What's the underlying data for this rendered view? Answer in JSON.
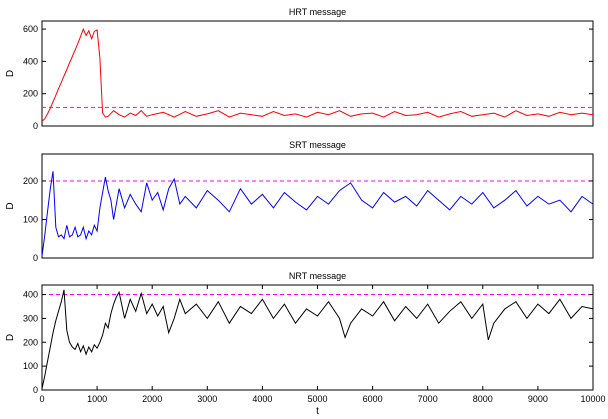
{
  "chart_data": [
    {
      "type": "line",
      "title": "HRT message",
      "ylabel": "D",
      "xlabel": "",
      "xlim": [
        0,
        10000
      ],
      "ylim": [
        0,
        650
      ],
      "yticks": [
        0,
        200,
        400,
        600
      ],
      "xticks": [],
      "threshold": 115,
      "threshold_color": "#ff00ff",
      "series_color": "#ff0000",
      "grid": false,
      "x": [
        0,
        50,
        100,
        150,
        200,
        250,
        300,
        350,
        400,
        450,
        500,
        550,
        600,
        650,
        700,
        750,
        800,
        850,
        900,
        950,
        1000,
        1050,
        1100,
        1150,
        1200,
        1300,
        1400,
        1500,
        1600,
        1700,
        1800,
        1900,
        2000,
        2200,
        2400,
        2600,
        2800,
        3000,
        3200,
        3400,
        3600,
        3800,
        4000,
        4200,
        4400,
        4600,
        4800,
        5000,
        5200,
        5400,
        5600,
        5800,
        6000,
        6200,
        6400,
        6600,
        6800,
        7000,
        7200,
        7400,
        7600,
        7800,
        8000,
        8200,
        8400,
        8600,
        8800,
        9000,
        9200,
        9400,
        9600,
        9800,
        10000
      ],
      "y": [
        30,
        45,
        75,
        110,
        150,
        190,
        230,
        270,
        310,
        350,
        390,
        430,
        470,
        510,
        555,
        600,
        560,
        590,
        540,
        585,
        595,
        420,
        80,
        55,
        60,
        95,
        70,
        55,
        80,
        65,
        95,
        60,
        70,
        85,
        55,
        90,
        60,
        75,
        95,
        55,
        80,
        70,
        60,
        90,
        65,
        75,
        55,
        85,
        70,
        95,
        60,
        75,
        80,
        55,
        90,
        65,
        70,
        85,
        55,
        75,
        90,
        60,
        70,
        80,
        55,
        95,
        65,
        75,
        60,
        85,
        70,
        80,
        70
      ]
    },
    {
      "type": "line",
      "title": "SRT message",
      "ylabel": "D",
      "xlabel": "",
      "xlim": [
        0,
        10000
      ],
      "ylim": [
        0,
        270
      ],
      "yticks": [
        0,
        100,
        200
      ],
      "xticks": [],
      "threshold": 200,
      "threshold_color": "#ff00ff",
      "series_color": "#0000ff",
      "grid": false,
      "x": [
        0,
        50,
        100,
        150,
        200,
        250,
        300,
        350,
        400,
        450,
        500,
        550,
        600,
        650,
        700,
        750,
        800,
        850,
        900,
        950,
        1000,
        1050,
        1100,
        1150,
        1200,
        1250,
        1300,
        1400,
        1500,
        1600,
        1700,
        1800,
        1900,
        2000,
        2100,
        2200,
        2300,
        2400,
        2500,
        2600,
        2800,
        3000,
        3200,
        3400,
        3600,
        3800,
        4000,
        4200,
        4400,
        4600,
        4800,
        5000,
        5200,
        5400,
        5600,
        5800,
        6000,
        6200,
        6400,
        6600,
        6800,
        7000,
        7200,
        7400,
        7600,
        7800,
        8000,
        8200,
        8400,
        8600,
        8800,
        9000,
        9200,
        9400,
        9600,
        9800,
        10000
      ],
      "y": [
        5,
        60,
        120,
        180,
        225,
        80,
        55,
        60,
        50,
        85,
        55,
        60,
        80,
        55,
        60,
        80,
        50,
        70,
        60,
        85,
        70,
        130,
        170,
        210,
        175,
        150,
        100,
        180,
        130,
        165,
        140,
        120,
        195,
        150,
        170,
        125,
        180,
        205,
        140,
        160,
        130,
        175,
        150,
        120,
        180,
        140,
        165,
        130,
        170,
        145,
        125,
        160,
        140,
        175,
        195,
        150,
        130,
        170,
        145,
        160,
        135,
        175,
        150,
        125,
        160,
        140,
        170,
        130,
        150,
        175,
        135,
        160,
        140,
        150,
        120,
        160,
        140
      ]
    },
    {
      "type": "line",
      "title": "NRT message",
      "ylabel": "D",
      "xlabel": "t",
      "xlim": [
        0,
        10000
      ],
      "ylim": [
        0,
        440
      ],
      "yticks": [
        0,
        100,
        200,
        300,
        400
      ],
      "xticks": [
        0,
        1000,
        2000,
        3000,
        4000,
        5000,
        6000,
        7000,
        8000,
        9000,
        10000
      ],
      "threshold": 400,
      "threshold_color": "#ff00ff",
      "series_color": "#000000",
      "grid": false,
      "x": [
        0,
        50,
        100,
        150,
        200,
        250,
        300,
        350,
        400,
        450,
        500,
        550,
        600,
        650,
        700,
        750,
        800,
        850,
        900,
        950,
        1000,
        1050,
        1100,
        1150,
        1200,
        1250,
        1300,
        1350,
        1400,
        1500,
        1600,
        1700,
        1800,
        1900,
        2000,
        2100,
        2200,
        2300,
        2400,
        2500,
        2600,
        2800,
        3000,
        3200,
        3400,
        3600,
        3800,
        4000,
        4200,
        4400,
        4600,
        4800,
        5000,
        5200,
        5400,
        5500,
        5600,
        5800,
        6000,
        6200,
        6400,
        6600,
        6800,
        7000,
        7200,
        7400,
        7600,
        7800,
        8000,
        8100,
        8200,
        8400,
        8600,
        8800,
        9000,
        9200,
        9400,
        9600,
        9800,
        10000
      ],
      "y": [
        5,
        60,
        120,
        180,
        240,
        290,
        330,
        370,
        420,
        250,
        200,
        180,
        170,
        195,
        160,
        185,
        150,
        180,
        160,
        190,
        175,
        200,
        230,
        280,
        260,
        320,
        360,
        390,
        410,
        300,
        380,
        330,
        405,
        320,
        360,
        310,
        350,
        240,
        300,
        380,
        320,
        360,
        300,
        370,
        280,
        350,
        320,
        380,
        300,
        360,
        280,
        340,
        310,
        370,
        300,
        220,
        280,
        340,
        310,
        370,
        290,
        350,
        300,
        360,
        280,
        330,
        370,
        300,
        360,
        210,
        280,
        340,
        370,
        300,
        360,
        320,
        380,
        300,
        350,
        340
      ]
    }
  ]
}
